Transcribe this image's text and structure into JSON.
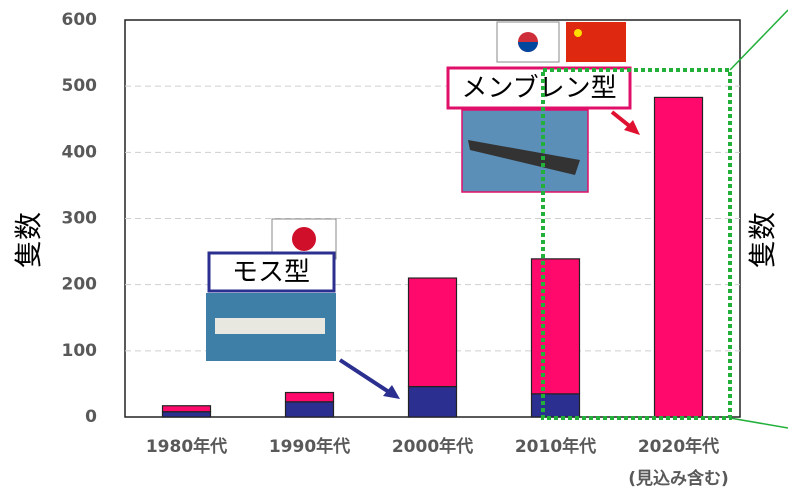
{
  "chart_data": {
    "type": "stacked_bar",
    "y_label": "隻数",
    "categories": [
      "1980年代",
      "1990年代",
      "2000年代",
      "2010年代",
      "2020年代"
    ],
    "category_note": "(見込み含む)",
    "series": [
      {
        "name": "モス型",
        "color": "#2b2f8f",
        "values": [
          8,
          23,
          46,
          35,
          0
        ]
      },
      {
        "name": "メンブレン型",
        "color": "#ff0a6c",
        "values": [
          9,
          14,
          164,
          204,
          483
        ]
      }
    ],
    "ylim": [
      0,
      600
    ],
    "yticks": [
      0,
      100,
      200,
      300,
      400,
      500,
      600
    ],
    "grid": true
  }
}
